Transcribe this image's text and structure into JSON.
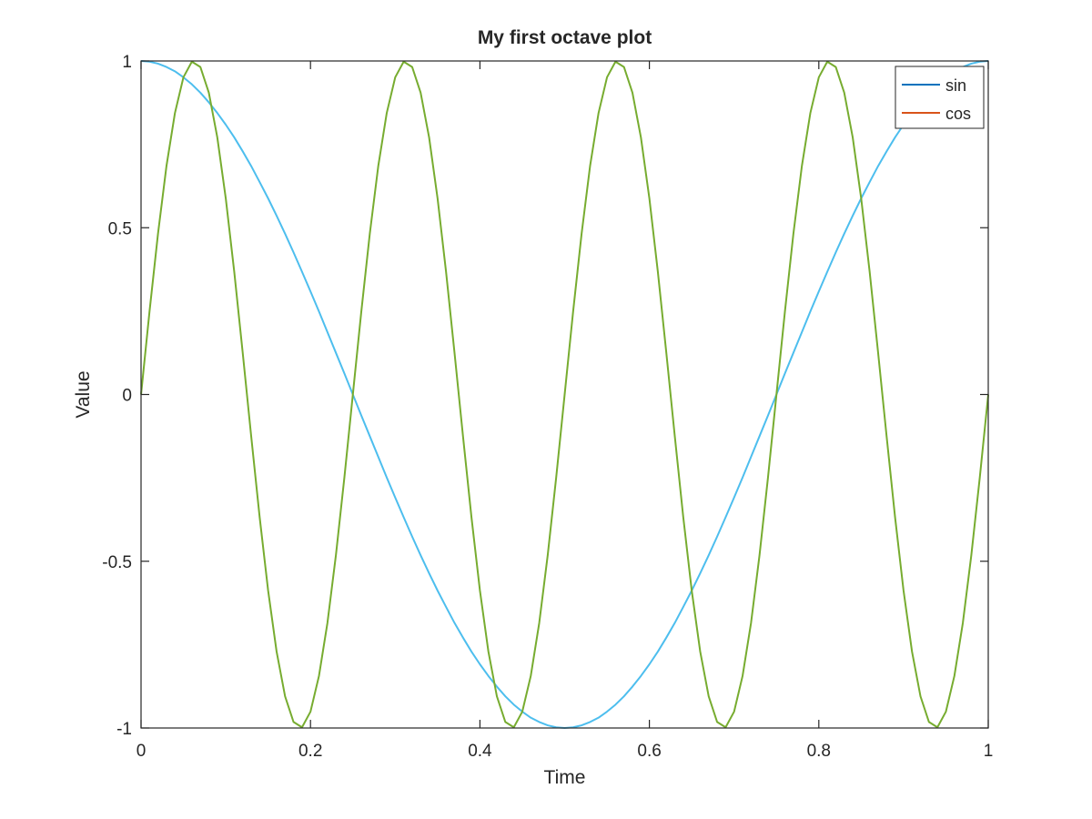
{
  "chart_data": {
    "type": "line",
    "title": "My first octave plot",
    "xlabel": "Time",
    "ylabel": "Value",
    "xlim": [
      0,
      1
    ],
    "ylim": [
      -1,
      1
    ],
    "xticks": [
      0,
      0.2,
      0.4,
      0.6,
      0.8,
      1
    ],
    "xtick_labels": [
      "0",
      "0.2",
      "0.4",
      "0.6",
      "0.8",
      "1"
    ],
    "yticks": [
      -1,
      -0.5,
      0,
      0.5,
      1
    ],
    "ytick_labels": [
      "-1",
      "-0.5",
      "0",
      "0.5",
      "1"
    ],
    "grid": false,
    "legend_position": "top-right",
    "legend_entries": [
      {
        "label": "sin",
        "color": "#0072bd"
      },
      {
        "label": "cos",
        "color": "#d95319"
      }
    ],
    "x": [
      0,
      0.01,
      0.02,
      0.03,
      0.04,
      0.05,
      0.06,
      0.07,
      0.08,
      0.09,
      0.1,
      0.11,
      0.12,
      0.13,
      0.14,
      0.15,
      0.16,
      0.17,
      0.18,
      0.19,
      0.2,
      0.21,
      0.22,
      0.23,
      0.24,
      0.25,
      0.26,
      0.27,
      0.28,
      0.29,
      0.3,
      0.31,
      0.32,
      0.33,
      0.34,
      0.35,
      0.36,
      0.37,
      0.38,
      0.39,
      0.4,
      0.41,
      0.42,
      0.43,
      0.44,
      0.45,
      0.46,
      0.47,
      0.48,
      0.49,
      0.5,
      0.51,
      0.52,
      0.53,
      0.54,
      0.55,
      0.56,
      0.57,
      0.58,
      0.59,
      0.6,
      0.61,
      0.62,
      0.63,
      0.64,
      0.65,
      0.66,
      0.67,
      0.68,
      0.69,
      0.7,
      0.71,
      0.72,
      0.73,
      0.74,
      0.75,
      0.76,
      0.77,
      0.78,
      0.79,
      0.8,
      0.81,
      0.82,
      0.83,
      0.84,
      0.85,
      0.86,
      0.87,
      0.88,
      0.89,
      0.9,
      0.91,
      0.92,
      0.93,
      0.94,
      0.95,
      0.96,
      0.97,
      0.98,
      0.99,
      1
    ],
    "series": [
      {
        "color": "#4dbeee",
        "values": [
          1,
          0.998,
          0.992,
          0.982,
          0.969,
          0.951,
          0.93,
          0.905,
          0.876,
          0.844,
          0.809,
          0.771,
          0.729,
          0.685,
          0.637,
          0.588,
          0.536,
          0.482,
          0.426,
          0.368,
          0.309,
          0.249,
          0.187,
          0.125,
          0.063,
          0,
          -0.063,
          -0.125,
          -0.187,
          -0.249,
          -0.309,
          -0.368,
          -0.426,
          -0.482,
          -0.536,
          -0.588,
          -0.637,
          -0.685,
          -0.729,
          -0.771,
          -0.809,
          -0.844,
          -0.876,
          -0.905,
          -0.93,
          -0.951,
          -0.969,
          -0.982,
          -0.992,
          -0.998,
          -1,
          -0.998,
          -0.992,
          -0.982,
          -0.969,
          -0.951,
          -0.93,
          -0.905,
          -0.876,
          -0.844,
          -0.809,
          -0.771,
          -0.729,
          -0.685,
          -0.637,
          -0.588,
          -0.536,
          -0.482,
          -0.426,
          -0.368,
          -0.309,
          -0.249,
          -0.187,
          -0.125,
          -0.063,
          0,
          0.063,
          0.125,
          0.187,
          0.249,
          0.309,
          0.368,
          0.426,
          0.482,
          0.536,
          0.588,
          0.637,
          0.685,
          0.729,
          0.771,
          0.809,
          0.844,
          0.876,
          0.905,
          0.93,
          0.951,
          0.969,
          0.982,
          0.992,
          0.998,
          1
        ]
      },
      {
        "color": "#77ac30",
        "values": [
          0,
          0.249,
          0.482,
          0.685,
          0.844,
          0.951,
          0.998,
          0.982,
          0.905,
          0.771,
          0.588,
          0.368,
          0.125,
          -0.125,
          -0.368,
          -0.588,
          -0.771,
          -0.905,
          -0.982,
          -0.998,
          -0.951,
          -0.844,
          -0.685,
          -0.482,
          -0.249,
          0,
          0.249,
          0.482,
          0.685,
          0.844,
          0.951,
          0.998,
          0.982,
          0.905,
          0.771,
          0.588,
          0.368,
          0.125,
          -0.125,
          -0.368,
          -0.588,
          -0.771,
          -0.905,
          -0.982,
          -0.998,
          -0.951,
          -0.844,
          -0.685,
          -0.482,
          -0.249,
          0,
          0.249,
          0.482,
          0.685,
          0.844,
          0.951,
          0.998,
          0.982,
          0.905,
          0.771,
          0.588,
          0.368,
          0.125,
          -0.125,
          -0.368,
          -0.588,
          -0.771,
          -0.905,
          -0.982,
          -0.998,
          -0.951,
          -0.844,
          -0.685,
          -0.482,
          -0.249,
          0,
          0.249,
          0.482,
          0.685,
          0.844,
          0.951,
          0.998,
          0.982,
          0.905,
          0.771,
          0.588,
          0.368,
          0.125,
          -0.125,
          -0.368,
          -0.588,
          -0.771,
          -0.905,
          -0.982,
          -0.998,
          -0.951,
          -0.844,
          -0.685,
          -0.482,
          -0.249,
          0
        ]
      }
    ]
  }
}
